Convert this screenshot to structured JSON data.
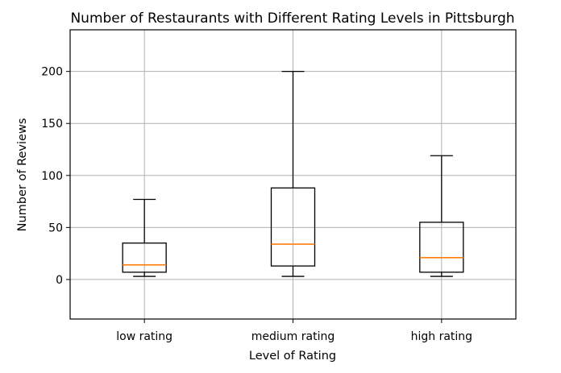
{
  "chart_data": {
    "type": "box",
    "title": "Number of Restaurants with Different Rating Levels in Pittsburgh",
    "xlabel": "Level of Rating",
    "ylabel": "Number of Reviews",
    "ylim": [
      -38,
      240
    ],
    "yticks": [
      0,
      50,
      100,
      150,
      200
    ],
    "grid": true,
    "colors": {
      "box": "#000000",
      "median": "#ff7f0e",
      "grid": "#b0b0b0"
    },
    "categories": [
      "low rating",
      "medium rating",
      "high rating"
    ],
    "boxes": [
      {
        "label": "low rating",
        "whisker_low": 3,
        "q1": 7,
        "median": 14,
        "q3": 35,
        "whisker_high": 77
      },
      {
        "label": "medium rating",
        "whisker_low": 3,
        "q1": 13,
        "median": 34,
        "q3": 88,
        "whisker_high": 200
      },
      {
        "label": "high rating",
        "whisker_low": 3,
        "q1": 7,
        "median": 21,
        "q3": 55,
        "whisker_high": 119
      }
    ]
  }
}
